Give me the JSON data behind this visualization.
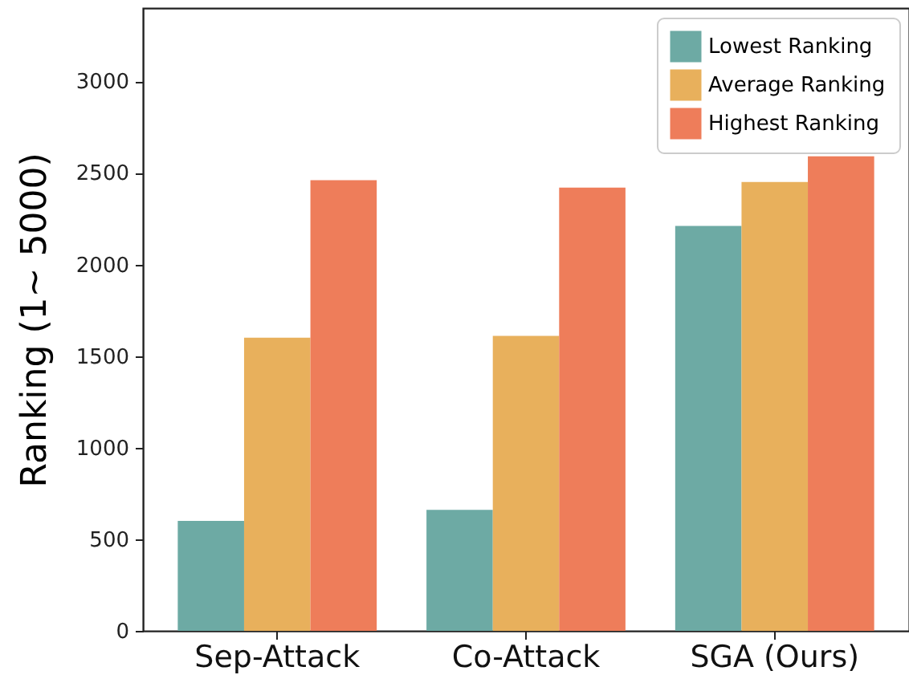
{
  "chart_data": {
    "type": "bar",
    "ylabel": "Ranking (1~ 5000)",
    "categories": [
      "Sep-Attack",
      "Co-Attack",
      "SGA (Ours)"
    ],
    "series": [
      {
        "name": "Lowest Ranking",
        "color": "#6daaa4",
        "values": [
          600,
          660,
          2210
        ]
      },
      {
        "name": "Average Ranking",
        "color": "#e8b05c",
        "values": [
          1600,
          1610,
          2450
        ]
      },
      {
        "name": "Highest Ranking",
        "color": "#ee7d5a",
        "values": [
          2460,
          2420,
          2590
        ]
      }
    ],
    "ylim": [
      0,
      3400
    ],
    "yticks": [
      0,
      500,
      1000,
      1500,
      2000,
      2500,
      3000
    ],
    "grid": false,
    "legend": "top right"
  }
}
